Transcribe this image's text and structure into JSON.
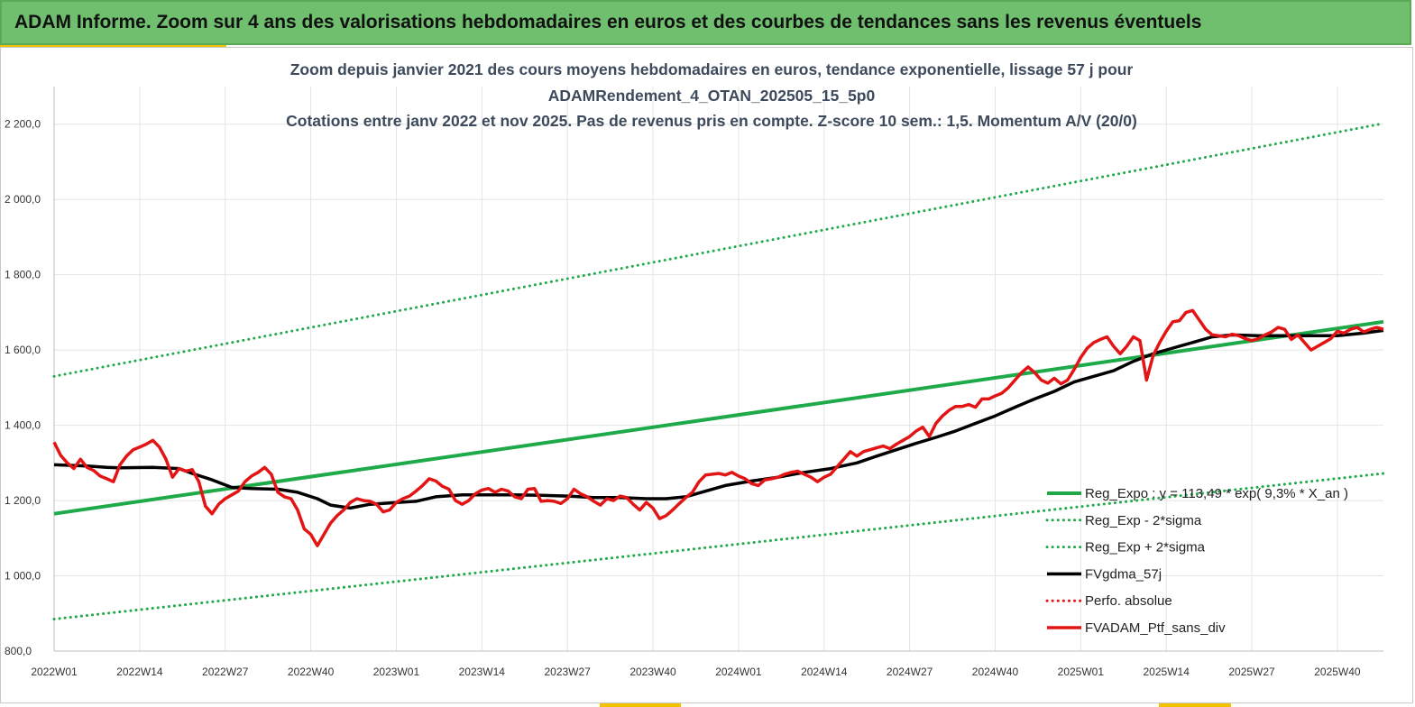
{
  "banner": {
    "title": "ADAM Informe. Zoom sur 4 ans des valorisations hebdomadaires en euros et des courbes de tendances sans les revenus éventuels"
  },
  "colors": {
    "banner_bg": "#6fbf6f",
    "accent": "#f2c200",
    "trend": "#1faa4a",
    "sigma": "#1faa4a",
    "smooth": "#000000",
    "perf": "#e31414",
    "grid": "#e4e4e4"
  },
  "chart_data": {
    "type": "line",
    "title_lines": [
      "Zoom depuis janvier 2021 des cours moyens hebdomadaires  en euros, tendance exponentielle, lissage 57 j pour",
      "ADAMRendement_4_OTAN_202505_15_5p0",
      "Cotations  entre janv 2022 et nov 2025. Pas de revenus pris en compte. Z-score 10 sem.: 1,5. Momentum A/V (20/0)"
    ],
    "x_range": [
      0,
      202
    ],
    "x_ticks": [
      {
        "x": 0,
        "label": "2022W01"
      },
      {
        "x": 13,
        "label": "2022W14"
      },
      {
        "x": 26,
        "label": "2022W27"
      },
      {
        "x": 39,
        "label": "2022W40"
      },
      {
        "x": 52,
        "label": "2023W01"
      },
      {
        "x": 65,
        "label": "2023W14"
      },
      {
        "x": 78,
        "label": "2023W27"
      },
      {
        "x": 91,
        "label": "2023W40"
      },
      {
        "x": 104,
        "label": "2024W01"
      },
      {
        "x": 117,
        "label": "2024W14"
      },
      {
        "x": 130,
        "label": "2024W27"
      },
      {
        "x": 143,
        "label": "2024W40"
      },
      {
        "x": 156,
        "label": "2025W01"
      },
      {
        "x": 169,
        "label": "2025W14"
      },
      {
        "x": 182,
        "label": "2025W27"
      },
      {
        "x": 195,
        "label": "2025W40"
      }
    ],
    "ylim": [
      800,
      2300
    ],
    "y_ticks": [
      {
        "v": 800,
        "label": "800,0"
      },
      {
        "v": 1000,
        "label": "1 000,0"
      },
      {
        "v": 1200,
        "label": "1 200,0"
      },
      {
        "v": 1400,
        "label": "1 400,0"
      },
      {
        "v": 1600,
        "label": "1 600,0"
      },
      {
        "v": 1800,
        "label": "1 800,0"
      },
      {
        "v": 2000,
        "label": "2 000,0"
      },
      {
        "v": 2200,
        "label": "2 200,0"
      }
    ],
    "series": [
      {
        "name": "Reg_Expo : y = 113,49 * exp( 9,3% *  X_an )",
        "style": "solid",
        "color": "#1faa4a",
        "width": 4,
        "points": [
          [
            0,
            1165
          ],
          [
            202,
            1675
          ]
        ]
      },
      {
        "name": "Reg_Exp - 2*sigma",
        "style": "dotted",
        "color": "#1faa4a",
        "width": 3,
        "points": [
          [
            0,
            885
          ],
          [
            202,
            1272
          ]
        ]
      },
      {
        "name": "Reg_Exp + 2*sigma",
        "style": "dotted",
        "color": "#1faa4a",
        "width": 3,
        "points": [
          [
            0,
            1530
          ],
          [
            202,
            2202
          ]
        ]
      },
      {
        "name": "FVgdma_57j",
        "style": "solid",
        "color": "#000000",
        "width": 3.5,
        "points": [
          [
            0,
            1295
          ],
          [
            5,
            1292
          ],
          [
            8,
            1288
          ],
          [
            10,
            1287
          ],
          [
            15,
            1288
          ],
          [
            19,
            1285
          ],
          [
            21,
            1272
          ],
          [
            24,
            1255
          ],
          [
            27,
            1235
          ],
          [
            30,
            1232
          ],
          [
            34,
            1230
          ],
          [
            37,
            1222
          ],
          [
            40,
            1205
          ],
          [
            42,
            1188
          ],
          [
            45,
            1180
          ],
          [
            48,
            1190
          ],
          [
            52,
            1195
          ],
          [
            55,
            1198
          ],
          [
            58,
            1210
          ],
          [
            62,
            1215
          ],
          [
            66,
            1215
          ],
          [
            70,
            1215
          ],
          [
            74,
            1214
          ],
          [
            78,
            1212
          ],
          [
            82,
            1208
          ],
          [
            86,
            1208
          ],
          [
            90,
            1205
          ],
          [
            93,
            1205
          ],
          [
            96,
            1210
          ],
          [
            98,
            1220
          ],
          [
            102,
            1240
          ],
          [
            106,
            1252
          ],
          [
            110,
            1262
          ],
          [
            114,
            1275
          ],
          [
            118,
            1285
          ],
          [
            122,
            1300
          ],
          [
            125,
            1318
          ],
          [
            128,
            1335
          ],
          [
            131,
            1352
          ],
          [
            134,
            1368
          ],
          [
            137,
            1385
          ],
          [
            140,
            1405
          ],
          [
            143,
            1425
          ],
          [
            146,
            1448
          ],
          [
            149,
            1470
          ],
          [
            152,
            1490
          ],
          [
            155,
            1515
          ],
          [
            158,
            1530
          ],
          [
            161,
            1545
          ],
          [
            164,
            1570
          ],
          [
            167,
            1590
          ],
          [
            170,
            1605
          ],
          [
            173,
            1620
          ],
          [
            176,
            1635
          ],
          [
            179,
            1640
          ],
          [
            183,
            1638
          ],
          [
            187,
            1638
          ],
          [
            191,
            1638
          ],
          [
            195,
            1638
          ],
          [
            199,
            1645
          ],
          [
            202,
            1652
          ]
        ]
      },
      {
        "name": "Perfo. absolue",
        "style": "dotted",
        "color": "#e31414",
        "width": 3,
        "points": []
      },
      {
        "name": "FVADAM_Ptf_sans_div",
        "style": "solid",
        "color": "#e31414",
        "width": 3.5,
        "points": [
          [
            0,
            1355
          ],
          [
            1,
            1320
          ],
          [
            2,
            1300
          ],
          [
            3,
            1285
          ],
          [
            4,
            1310
          ],
          [
            5,
            1288
          ],
          [
            6,
            1280
          ],
          [
            7,
            1265
          ],
          [
            8,
            1258
          ],
          [
            9,
            1250
          ],
          [
            10,
            1295
          ],
          [
            11,
            1318
          ],
          [
            12,
            1335
          ],
          [
            13,
            1342
          ],
          [
            14,
            1350
          ],
          [
            15,
            1360
          ],
          [
            16,
            1342
          ],
          [
            17,
            1310
          ],
          [
            18,
            1262
          ],
          [
            19,
            1285
          ],
          [
            20,
            1278
          ],
          [
            21,
            1282
          ],
          [
            22,
            1250
          ],
          [
            23,
            1185
          ],
          [
            24,
            1165
          ],
          [
            25,
            1190
          ],
          [
            26,
            1205
          ],
          [
            27,
            1215
          ],
          [
            28,
            1225
          ],
          [
            29,
            1250
          ],
          [
            30,
            1265
          ],
          [
            31,
            1275
          ],
          [
            32,
            1288
          ],
          [
            33,
            1270
          ],
          [
            34,
            1222
          ],
          [
            35,
            1210
          ],
          [
            36,
            1205
          ],
          [
            37,
            1175
          ],
          [
            38,
            1125
          ],
          [
            39,
            1110
          ],
          [
            40,
            1080
          ],
          [
            41,
            1110
          ],
          [
            42,
            1140
          ],
          [
            43,
            1160
          ],
          [
            44,
            1175
          ],
          [
            45,
            1195
          ],
          [
            46,
            1205
          ],
          [
            47,
            1200
          ],
          [
            48,
            1198
          ],
          [
            49,
            1190
          ],
          [
            50,
            1170
          ],
          [
            51,
            1175
          ],
          [
            52,
            1195
          ],
          [
            53,
            1205
          ],
          [
            54,
            1212
          ],
          [
            55,
            1225
          ],
          [
            56,
            1240
          ],
          [
            57,
            1258
          ],
          [
            58,
            1252
          ],
          [
            59,
            1238
          ],
          [
            60,
            1230
          ],
          [
            61,
            1200
          ],
          [
            62,
            1190
          ],
          [
            63,
            1200
          ],
          [
            64,
            1218
          ],
          [
            65,
            1228
          ],
          [
            66,
            1232
          ],
          [
            67,
            1222
          ],
          [
            68,
            1230
          ],
          [
            69,
            1225
          ],
          [
            70,
            1210
          ],
          [
            71,
            1205
          ],
          [
            72,
            1230
          ],
          [
            73,
            1232
          ],
          [
            74,
            1198
          ],
          [
            75,
            1200
          ],
          [
            76,
            1198
          ],
          [
            77,
            1192
          ],
          [
            78,
            1205
          ],
          [
            79,
            1230
          ],
          [
            80,
            1218
          ],
          [
            81,
            1210
          ],
          [
            82,
            1198
          ],
          [
            83,
            1188
          ],
          [
            84,
            1205
          ],
          [
            85,
            1200
          ],
          [
            86,
            1212
          ],
          [
            87,
            1208
          ],
          [
            88,
            1190
          ],
          [
            89,
            1175
          ],
          [
            90,
            1195
          ],
          [
            91,
            1180
          ],
          [
            92,
            1152
          ],
          [
            93,
            1160
          ],
          [
            94,
            1175
          ],
          [
            95,
            1192
          ],
          [
            96,
            1208
          ],
          [
            97,
            1222
          ],
          [
            98,
            1250
          ],
          [
            99,
            1268
          ],
          [
            100,
            1270
          ],
          [
            101,
            1272
          ],
          [
            102,
            1268
          ],
          [
            103,
            1275
          ],
          [
            104,
            1265
          ],
          [
            105,
            1258
          ],
          [
            106,
            1245
          ],
          [
            107,
            1240
          ],
          [
            108,
            1255
          ],
          [
            109,
            1258
          ],
          [
            110,
            1262
          ],
          [
            111,
            1270
          ],
          [
            112,
            1275
          ],
          [
            113,
            1278
          ],
          [
            114,
            1270
          ],
          [
            115,
            1262
          ],
          [
            116,
            1250
          ],
          [
            117,
            1262
          ],
          [
            118,
            1270
          ],
          [
            119,
            1290
          ],
          [
            120,
            1310
          ],
          [
            121,
            1330
          ],
          [
            122,
            1318
          ],
          [
            123,
            1330
          ],
          [
            124,
            1335
          ],
          [
            125,
            1340
          ],
          [
            126,
            1345
          ],
          [
            127,
            1338
          ],
          [
            128,
            1350
          ],
          [
            129,
            1360
          ],
          [
            130,
            1370
          ],
          [
            131,
            1385
          ],
          [
            132,
            1395
          ],
          [
            133,
            1370
          ],
          [
            134,
            1405
          ],
          [
            135,
            1425
          ],
          [
            136,
            1440
          ],
          [
            137,
            1450
          ],
          [
            138,
            1450
          ],
          [
            139,
            1455
          ],
          [
            140,
            1448
          ],
          [
            141,
            1470
          ],
          [
            142,
            1470
          ],
          [
            143,
            1478
          ],
          [
            144,
            1485
          ],
          [
            145,
            1500
          ],
          [
            146,
            1520
          ],
          [
            147,
            1540
          ],
          [
            148,
            1555
          ],
          [
            149,
            1540
          ],
          [
            150,
            1520
          ],
          [
            151,
            1512
          ],
          [
            152,
            1525
          ],
          [
            153,
            1510
          ],
          [
            154,
            1520
          ],
          [
            155,
            1548
          ],
          [
            156,
            1580
          ],
          [
            157,
            1605
          ],
          [
            158,
            1620
          ],
          [
            159,
            1628
          ],
          [
            160,
            1635
          ],
          [
            161,
            1610
          ],
          [
            162,
            1590
          ],
          [
            163,
            1610
          ],
          [
            164,
            1635
          ],
          [
            165,
            1625
          ],
          [
            166,
            1520
          ],
          [
            167,
            1585
          ],
          [
            168,
            1620
          ],
          [
            169,
            1650
          ],
          [
            170,
            1675
          ],
          [
            171,
            1678
          ],
          [
            172,
            1700
          ],
          [
            173,
            1705
          ],
          [
            174,
            1680
          ],
          [
            175,
            1655
          ],
          [
            176,
            1640
          ],
          [
            177,
            1638
          ],
          [
            178,
            1635
          ],
          [
            179,
            1642
          ],
          [
            180,
            1638
          ],
          [
            181,
            1630
          ],
          [
            182,
            1625
          ],
          [
            183,
            1630
          ],
          [
            184,
            1640
          ],
          [
            185,
            1648
          ],
          [
            186,
            1660
          ],
          [
            187,
            1655
          ],
          [
            188,
            1628
          ],
          [
            189,
            1640
          ],
          [
            190,
            1620
          ],
          [
            191,
            1600
          ],
          [
            192,
            1610
          ],
          [
            193,
            1620
          ],
          [
            194,
            1630
          ],
          [
            195,
            1650
          ],
          [
            196,
            1645
          ],
          [
            197,
            1655
          ],
          [
            198,
            1660
          ],
          [
            199,
            1648
          ],
          [
            200,
            1655
          ],
          [
            201,
            1660
          ],
          [
            202,
            1655
          ]
        ]
      }
    ],
    "legend_position": "bottom-right",
    "grid": true
  }
}
